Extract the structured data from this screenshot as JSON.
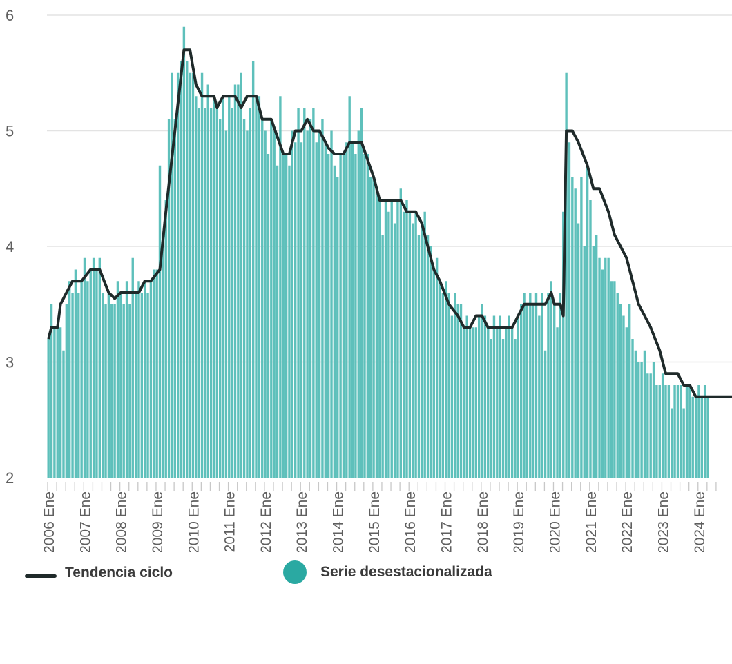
{
  "chart_data": {
    "type": "bar",
    "y_ticks": [
      "2",
      "3",
      "4",
      "5",
      "6"
    ],
    "ylim": [
      2,
      6
    ],
    "x_ticks": [
      "2006 Ene",
      "2007 Ene",
      "2008 Ene",
      "2009 Ene",
      "2010 Ene",
      "2011 Ene",
      "2012 Ene",
      "2013 Ene",
      "2014 Ene",
      "2015 Ene",
      "2016 Ene",
      "2017 Ene",
      "2018 Ene",
      "2019 Ene",
      "2020 Ene",
      "2021 Ene",
      "2022 Ene",
      "2023 Ene",
      "2024 Ene"
    ],
    "grid": true,
    "legend_position": "bottom",
    "colors": {
      "bars": "#5ec0bb",
      "line": "#1f2a2a"
    },
    "series": [
      {
        "name": "Tendencia ciclo",
        "kind": "line",
        "points": [
          [
            "2006-01",
            3.2
          ],
          [
            "2006-02",
            3.3
          ],
          [
            "2006-04",
            3.3
          ],
          [
            "2006-05",
            3.5
          ],
          [
            "2006-07",
            3.6
          ],
          [
            "2006-09",
            3.7
          ],
          [
            "2006-12",
            3.7
          ],
          [
            "2007-03",
            3.8
          ],
          [
            "2007-06",
            3.8
          ],
          [
            "2007-09",
            3.6
          ],
          [
            "2007-11",
            3.55
          ],
          [
            "2008-01",
            3.6
          ],
          [
            "2008-07",
            3.6
          ],
          [
            "2008-09",
            3.7
          ],
          [
            "2008-11",
            3.7
          ],
          [
            "2009-02",
            3.8
          ],
          [
            "2009-04",
            4.3
          ],
          [
            "2009-07",
            5.0
          ],
          [
            "2009-10",
            5.7
          ],
          [
            "2009-12",
            5.7
          ],
          [
            "2010-02",
            5.4
          ],
          [
            "2010-04",
            5.3
          ],
          [
            "2010-08",
            5.3
          ],
          [
            "2010-09",
            5.2
          ],
          [
            "2010-11",
            5.3
          ],
          [
            "2011-03",
            5.3
          ],
          [
            "2011-05",
            5.2
          ],
          [
            "2011-07",
            5.3
          ],
          [
            "2011-10",
            5.3
          ],
          [
            "2011-12",
            5.1
          ],
          [
            "2012-03",
            5.1
          ],
          [
            "2012-05",
            4.95
          ],
          [
            "2012-07",
            4.8
          ],
          [
            "2012-09",
            4.8
          ],
          [
            "2012-11",
            5.0
          ],
          [
            "2013-01",
            5.0
          ],
          [
            "2013-03",
            5.1
          ],
          [
            "2013-05",
            5.0
          ],
          [
            "2013-07",
            5.0
          ],
          [
            "2013-10",
            4.85
          ],
          [
            "2013-12",
            4.8
          ],
          [
            "2014-03",
            4.8
          ],
          [
            "2014-05",
            4.9
          ],
          [
            "2014-09",
            4.9
          ],
          [
            "2014-11",
            4.75
          ],
          [
            "2015-01",
            4.6
          ],
          [
            "2015-03",
            4.4
          ],
          [
            "2015-10",
            4.4
          ],
          [
            "2015-12",
            4.3
          ],
          [
            "2016-03",
            4.3
          ],
          [
            "2016-05",
            4.2
          ],
          [
            "2016-07",
            4.0
          ],
          [
            "2016-09",
            3.8
          ],
          [
            "2016-11",
            3.7
          ],
          [
            "2017-02",
            3.5
          ],
          [
            "2017-05",
            3.4
          ],
          [
            "2017-07",
            3.3
          ],
          [
            "2017-09",
            3.3
          ],
          [
            "2017-11",
            3.4
          ],
          [
            "2018-01",
            3.4
          ],
          [
            "2018-03",
            3.3
          ],
          [
            "2018-11",
            3.3
          ],
          [
            "2018-12",
            3.35
          ],
          [
            "2019-01",
            3.4
          ],
          [
            "2019-03",
            3.5
          ],
          [
            "2019-10",
            3.5
          ],
          [
            "2019-12",
            3.6
          ],
          [
            "2020-01",
            3.5
          ],
          [
            "2020-03",
            3.5
          ],
          [
            "2020-04",
            3.4
          ],
          [
            "2020-05",
            5.0
          ],
          [
            "2020-07",
            5.0
          ],
          [
            "2020-09",
            4.9
          ],
          [
            "2020-12",
            4.7
          ],
          [
            "2021-02",
            4.5
          ],
          [
            "2021-04",
            4.5
          ],
          [
            "2021-07",
            4.3
          ],
          [
            "2021-09",
            4.1
          ],
          [
            "2021-11",
            4.0
          ],
          [
            "2022-01",
            3.9
          ],
          [
            "2022-03",
            3.7
          ],
          [
            "2022-05",
            3.5
          ],
          [
            "2022-07",
            3.4
          ],
          [
            "2022-09",
            3.3
          ],
          [
            "2022-12",
            3.1
          ],
          [
            "2023-02",
            2.9
          ],
          [
            "2023-06",
            2.9
          ],
          [
            "2023-08",
            2.8
          ],
          [
            "2023-10",
            2.8
          ],
          [
            "2023-12",
            2.7
          ],
          [
            "2025-04",
            2.7
          ]
        ]
      },
      {
        "name": "Serie desestacionalizada",
        "kind": "bar",
        "frequency": "monthly",
        "start": "2006-01",
        "values": [
          3.2,
          3.5,
          3.3,
          3.3,
          3.3,
          3.1,
          3.5,
          3.7,
          3.6,
          3.8,
          3.6,
          3.7,
          3.9,
          3.7,
          3.8,
          3.9,
          3.8,
          3.9,
          3.6,
          3.5,
          3.6,
          3.5,
          3.5,
          3.7,
          3.6,
          3.5,
          3.7,
          3.5,
          3.9,
          3.6,
          3.7,
          3.6,
          3.7,
          3.6,
          3.7,
          3.8,
          3.8,
          4.7,
          4.1,
          4.4,
          5.1,
          5.5,
          5.1,
          5.5,
          5.6,
          5.9,
          5.6,
          5.5,
          5.5,
          5.3,
          5.2,
          5.5,
          5.2,
          5.4,
          5.2,
          5.3,
          5.2,
          5.1,
          5.3,
          5.0,
          5.3,
          5.2,
          5.4,
          5.4,
          5.5,
          5.1,
          5.0,
          5.2,
          5.6,
          5.3,
          5.3,
          5.1,
          5.0,
          4.8,
          5.1,
          5.0,
          4.7,
          5.3,
          4.8,
          4.8,
          4.7,
          5.0,
          4.9,
          5.2,
          4.9,
          5.2,
          5.0,
          5.1,
          5.2,
          4.9,
          5.0,
          5.1,
          4.9,
          4.8,
          5.0,
          4.7,
          4.6,
          4.8,
          4.8,
          4.9,
          5.3,
          4.9,
          4.8,
          5.0,
          5.2,
          4.8,
          4.8,
          4.6,
          4.6,
          4.5,
          4.4,
          4.1,
          4.4,
          4.3,
          4.4,
          4.2,
          4.4,
          4.5,
          4.3,
          4.4,
          4.3,
          4.2,
          4.3,
          4.1,
          4.2,
          4.3,
          4.1,
          4.0,
          3.8,
          3.9,
          3.7,
          3.6,
          3.7,
          3.6,
          3.4,
          3.6,
          3.5,
          3.5,
          3.3,
          3.4,
          3.3,
          3.3,
          3.3,
          3.4,
          3.5,
          3.4,
          3.3,
          3.2,
          3.4,
          3.3,
          3.4,
          3.2,
          3.3,
          3.4,
          3.3,
          3.2,
          3.4,
          3.5,
          3.6,
          3.5,
          3.6,
          3.5,
          3.6,
          3.4,
          3.6,
          3.1,
          3.6,
          3.7,
          3.5,
          3.3,
          3.6,
          4.3,
          5.5,
          4.9,
          4.6,
          4.5,
          4.2,
          4.6,
          4.0,
          4.7,
          4.4,
          4.0,
          4.1,
          3.9,
          3.8,
          3.9,
          3.9,
          3.7,
          3.7,
          3.6,
          3.5,
          3.4,
          3.3,
          3.5,
          3.2,
          3.1,
          3.0,
          3.0,
          3.1,
          2.9,
          2.9,
          3.0,
          2.8,
          2.8,
          2.9,
          2.8,
          2.8,
          2.6,
          2.8,
          2.8,
          2.8,
          2.6,
          2.8,
          2.8,
          2.7,
          2.7,
          2.8,
          2.7,
          2.8,
          2.7
        ]
      }
    ]
  },
  "legend": {
    "line_label": "Tendencia ciclo",
    "bar_label": "Serie desestacionalizada"
  }
}
